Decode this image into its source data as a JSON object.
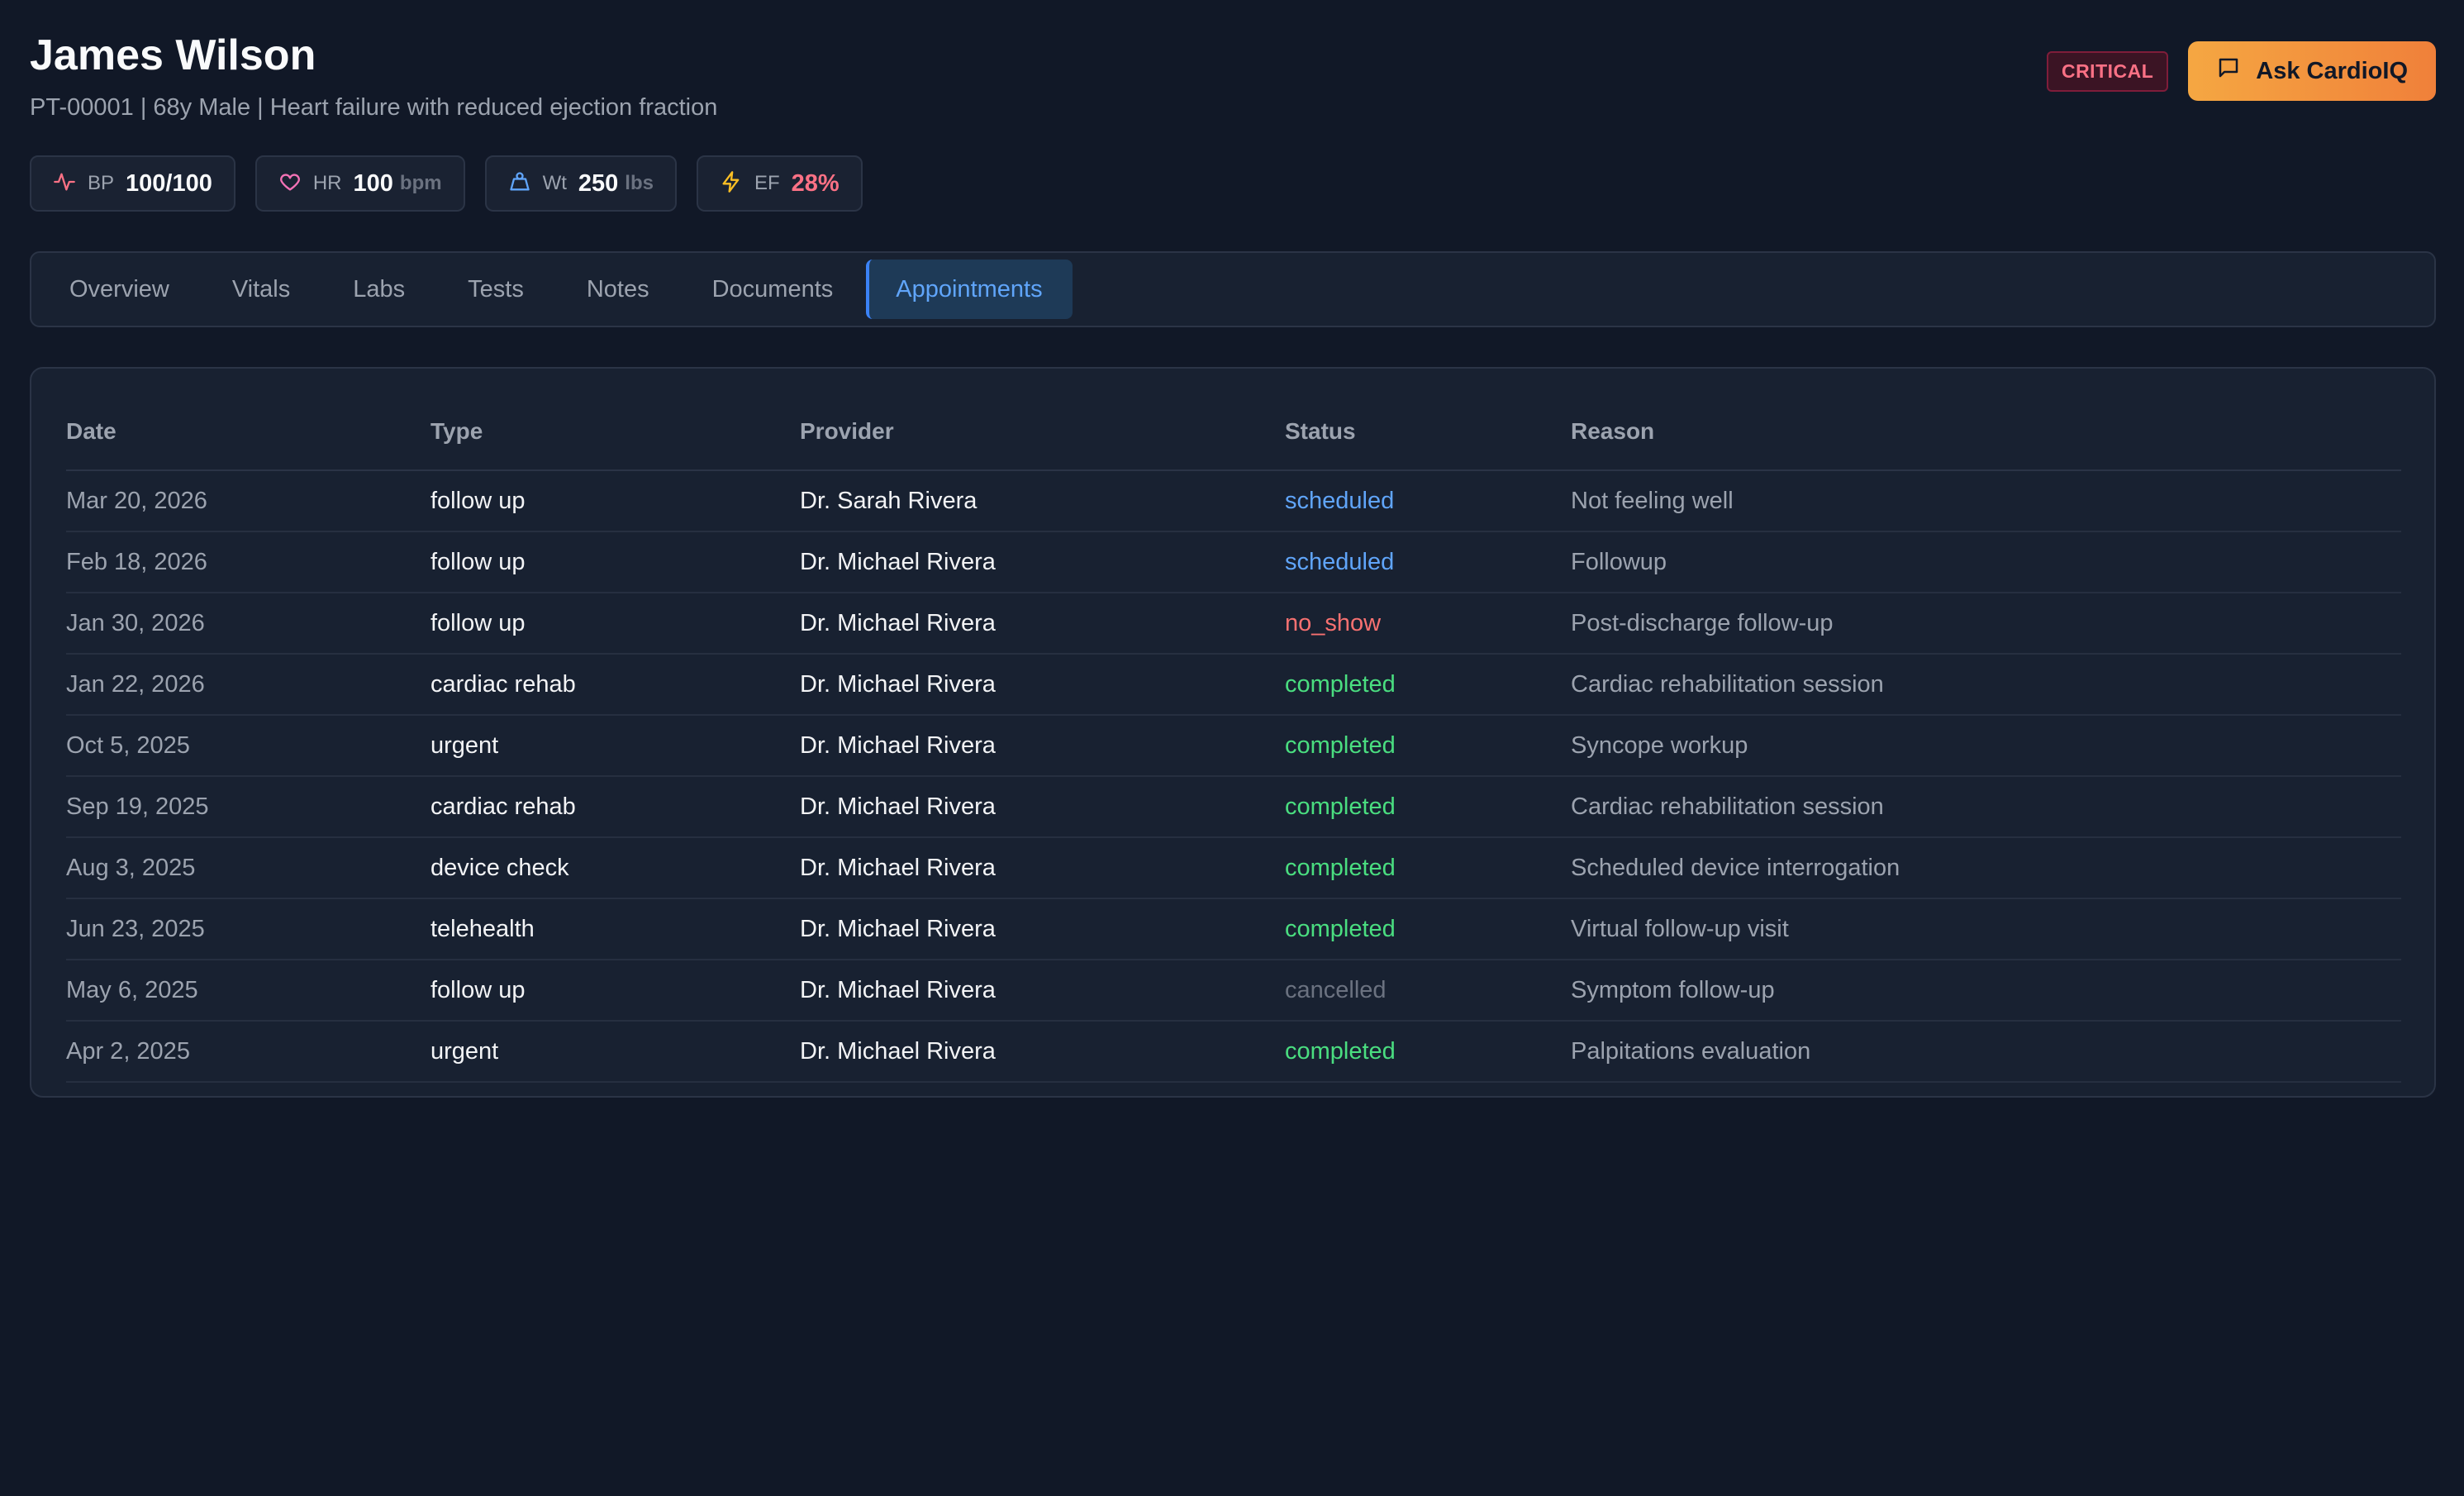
{
  "patient": {
    "name": "James Wilson",
    "subtitle": "PT-00001 | 68y Male | Heart failure with reduced ejection fraction",
    "status_badge": "CRITICAL"
  },
  "actions": {
    "ask_label": "Ask CardioIQ",
    "ask_icon": "chat-icon"
  },
  "vitals": [
    {
      "icon": "activity-icon",
      "label": "BP",
      "value": "100/100",
      "unit": "",
      "color": "#f9fafb"
    },
    {
      "icon": "heart-icon",
      "label": "HR",
      "value": "100",
      "unit": "bpm",
      "color": "#f9fafb"
    },
    {
      "icon": "weight-icon",
      "label": "Wt",
      "value": "250",
      "unit": "lbs",
      "color": "#f9fafb"
    },
    {
      "icon": "bolt-icon",
      "label": "EF",
      "value": "28%",
      "unit": "",
      "color": "#fb7185"
    }
  ],
  "tabs": [
    {
      "label": "Overview",
      "active": false
    },
    {
      "label": "Vitals",
      "active": false
    },
    {
      "label": "Labs",
      "active": false
    },
    {
      "label": "Tests",
      "active": false
    },
    {
      "label": "Notes",
      "active": false
    },
    {
      "label": "Documents",
      "active": false
    },
    {
      "label": "Appointments",
      "active": true
    }
  ],
  "table": {
    "columns": [
      "Date",
      "Type",
      "Provider",
      "Status",
      "Reason"
    ],
    "rows": [
      {
        "date": "Mar 20, 2026",
        "type": "follow up",
        "provider": "Dr. Sarah Rivera",
        "status": "scheduled",
        "reason": "Not feeling well"
      },
      {
        "date": "Feb 18, 2026",
        "type": "follow up",
        "provider": "Dr. Michael Rivera",
        "status": "scheduled",
        "reason": "Followup"
      },
      {
        "date": "Jan 30, 2026",
        "type": "follow up",
        "provider": "Dr. Michael Rivera",
        "status": "no_show",
        "reason": "Post-discharge follow-up"
      },
      {
        "date": "Jan 22, 2026",
        "type": "cardiac rehab",
        "provider": "Dr. Michael Rivera",
        "status": "completed",
        "reason": "Cardiac rehabilitation session"
      },
      {
        "date": "Oct 5, 2025",
        "type": "urgent",
        "provider": "Dr. Michael Rivera",
        "status": "completed",
        "reason": "Syncope workup"
      },
      {
        "date": "Sep 19, 2025",
        "type": "cardiac rehab",
        "provider": "Dr. Michael Rivera",
        "status": "completed",
        "reason": "Cardiac rehabilitation session"
      },
      {
        "date": "Aug 3, 2025",
        "type": "device check",
        "provider": "Dr. Michael Rivera",
        "status": "completed",
        "reason": "Scheduled device interrogation"
      },
      {
        "date": "Jun 23, 2025",
        "type": "telehealth",
        "provider": "Dr. Michael Rivera",
        "status": "completed",
        "reason": "Virtual follow-up visit"
      },
      {
        "date": "May 6, 2025",
        "type": "follow up",
        "provider": "Dr. Michael Rivera",
        "status": "cancelled",
        "reason": "Symptom follow-up"
      },
      {
        "date": "Apr 2, 2025",
        "type": "urgent",
        "provider": "Dr. Michael Rivera",
        "status": "completed",
        "reason": "Palpitations evaluation"
      }
    ]
  }
}
